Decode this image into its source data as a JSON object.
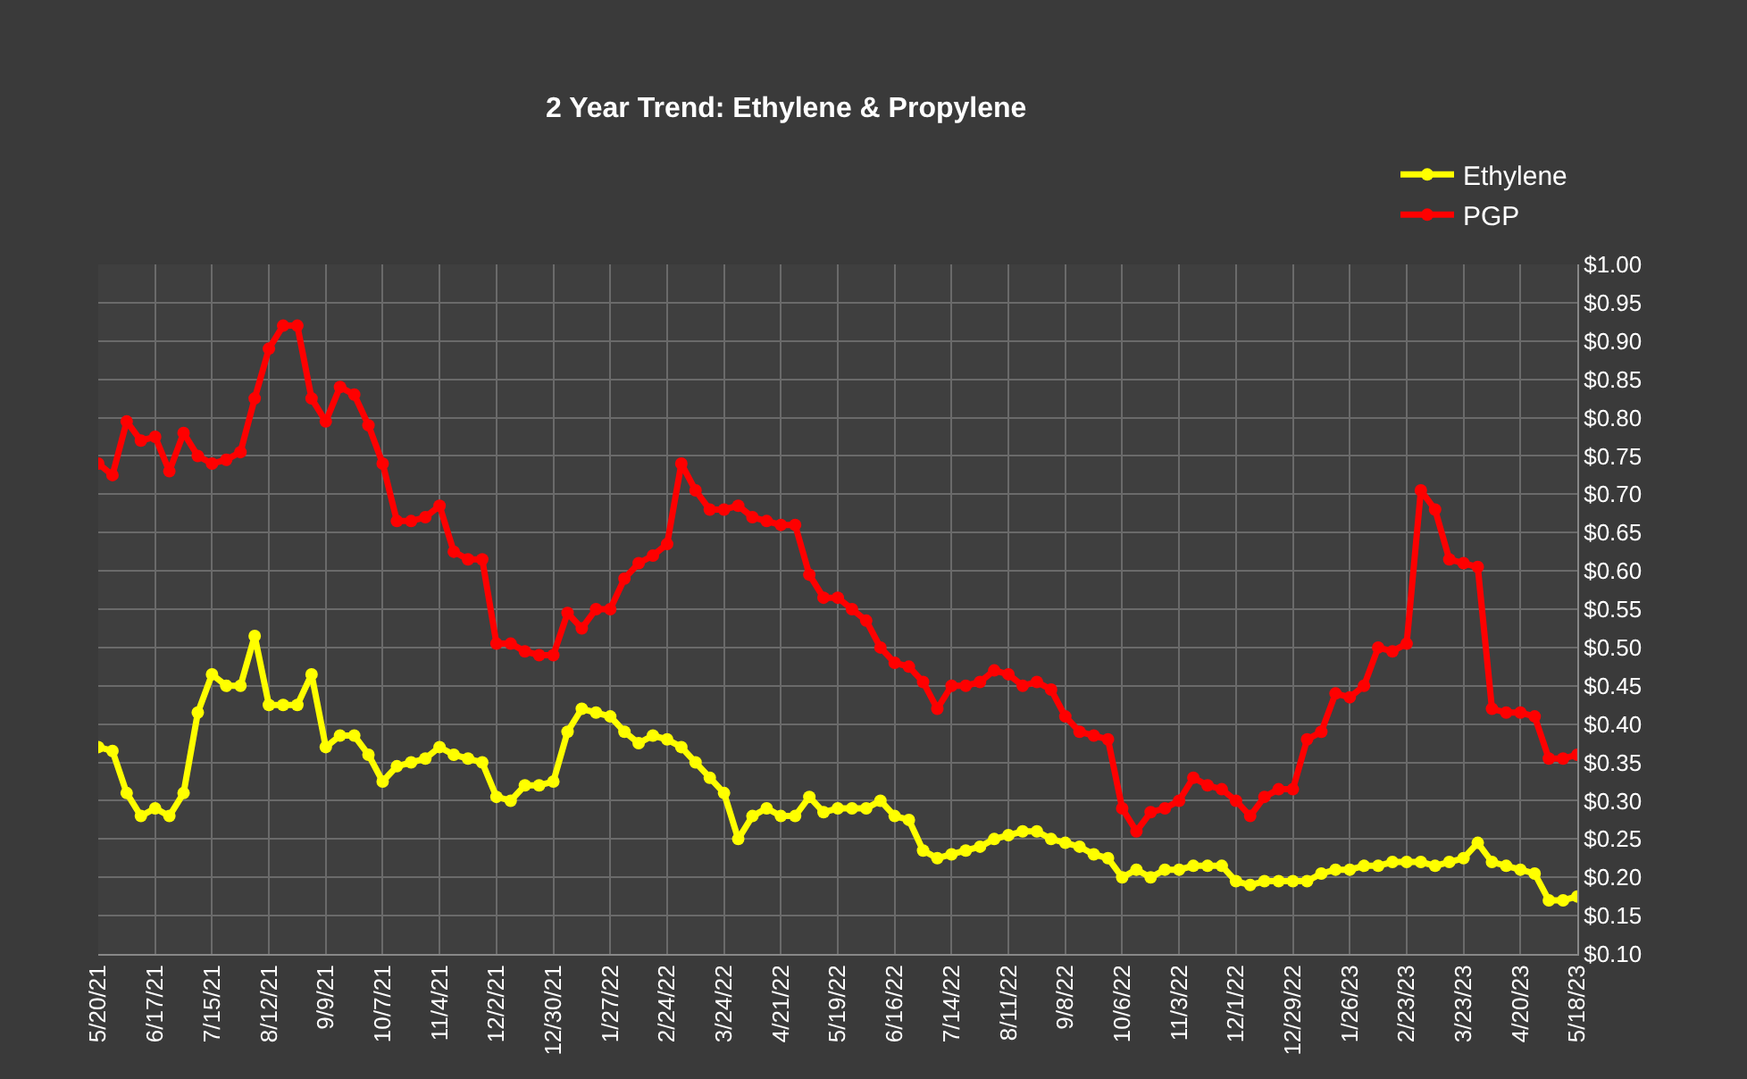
{
  "chart_data": {
    "type": "line",
    "subtitle": "2 Year Trend: Ethylene & Propylene",
    "x": [
      "2021-05-20",
      "2021-05-27",
      "2021-06-03",
      "2021-06-10",
      "2021-06-17",
      "2021-06-24",
      "2021-07-01",
      "2021-07-08",
      "2021-07-15",
      "2021-07-22",
      "2021-07-29",
      "2021-08-05",
      "2021-08-12",
      "2021-08-19",
      "2021-08-26",
      "2021-09-02",
      "2021-09-09",
      "2021-09-16",
      "2021-09-23",
      "2021-09-30",
      "2021-10-07",
      "2021-10-14",
      "2021-10-21",
      "2021-10-28",
      "2021-11-04",
      "2021-11-11",
      "2021-11-18",
      "2021-11-25",
      "2021-12-02",
      "2021-12-09",
      "2021-12-16",
      "2021-12-23",
      "2021-12-30",
      "2022-01-06",
      "2022-01-13",
      "2022-01-20",
      "2022-01-27",
      "2022-02-03",
      "2022-02-10",
      "2022-02-17",
      "2022-02-24",
      "2022-03-03",
      "2022-03-10",
      "2022-03-17",
      "2022-03-24",
      "2022-03-31",
      "2022-04-07",
      "2022-04-14",
      "2022-04-21",
      "2022-04-28",
      "2022-05-05",
      "2022-05-12",
      "2022-05-19",
      "2022-05-26",
      "2022-06-02",
      "2022-06-09",
      "2022-06-16",
      "2022-06-23",
      "2022-06-30",
      "2022-07-07",
      "2022-07-14",
      "2022-07-21",
      "2022-07-28",
      "2022-08-04",
      "2022-08-11",
      "2022-08-18",
      "2022-08-25",
      "2022-09-01",
      "2022-09-08",
      "2022-09-15",
      "2022-09-22",
      "2022-09-29",
      "2022-10-06",
      "2022-10-13",
      "2022-10-20",
      "2022-10-27",
      "2022-11-03",
      "2022-11-10",
      "2022-11-17",
      "2022-11-24",
      "2022-12-01",
      "2022-12-08",
      "2022-12-15",
      "2022-12-22",
      "2022-12-29",
      "2023-01-05",
      "2023-01-12",
      "2023-01-19",
      "2023-01-26",
      "2023-02-02",
      "2023-02-09",
      "2023-02-16",
      "2023-02-23",
      "2023-03-02",
      "2023-03-09",
      "2023-03-16",
      "2023-03-23",
      "2023-03-30",
      "2023-04-06",
      "2023-04-13",
      "2023-04-20",
      "2023-04-27",
      "2023-05-04",
      "2023-05-11",
      "2023-05-18"
    ],
    "series": [
      {
        "name": "Ethylene",
        "color": "#ffff00",
        "values": [
          0.37,
          0.365,
          0.31,
          0.28,
          0.29,
          0.28,
          0.31,
          0.415,
          0.465,
          0.45,
          0.45,
          0.515,
          0.425,
          0.425,
          0.425,
          0.465,
          0.37,
          0.385,
          0.385,
          0.36,
          0.325,
          0.345,
          0.35,
          0.355,
          0.37,
          0.36,
          0.355,
          0.35,
          0.305,
          0.3,
          0.32,
          0.32,
          0.325,
          0.39,
          0.42,
          0.415,
          0.41,
          0.39,
          0.375,
          0.385,
          0.38,
          0.37,
          0.35,
          0.33,
          0.31,
          0.25,
          0.28,
          0.29,
          0.28,
          0.28,
          0.305,
          0.285,
          0.29,
          0.29,
          0.29,
          0.3,
          0.28,
          0.275,
          0.235,
          0.225,
          0.23,
          0.235,
          0.24,
          0.25,
          0.255,
          0.26,
          0.26,
          0.25,
          0.245,
          0.24,
          0.23,
          0.225,
          0.2,
          0.21,
          0.2,
          0.21,
          0.21,
          0.215,
          0.215,
          0.215,
          0.195,
          0.19,
          0.195,
          0.195,
          0.195,
          0.195,
          0.205,
          0.21,
          0.21,
          0.215,
          0.215,
          0.22,
          0.22,
          0.22,
          0.215,
          0.22,
          0.225,
          0.245,
          0.22,
          0.215,
          0.21,
          0.205,
          0.17,
          0.17,
          0.175
        ]
      },
      {
        "name": "PGP",
        "color": "#ff0000",
        "values": [
          0.74,
          0.725,
          0.795,
          0.77,
          0.775,
          0.73,
          0.78,
          0.75,
          0.74,
          0.745,
          0.755,
          0.825,
          0.89,
          0.92,
          0.92,
          0.825,
          0.795,
          0.84,
          0.83,
          0.79,
          0.74,
          0.665,
          0.665,
          0.67,
          0.685,
          0.625,
          0.615,
          0.615,
          0.505,
          0.505,
          0.495,
          0.49,
          0.49,
          0.545,
          0.525,
          0.55,
          0.55,
          0.59,
          0.61,
          0.62,
          0.635,
          0.74,
          0.705,
          0.68,
          0.68,
          0.685,
          0.67,
          0.665,
          0.66,
          0.66,
          0.595,
          0.565,
          0.565,
          0.55,
          0.535,
          0.5,
          0.48,
          0.475,
          0.455,
          0.42,
          0.45,
          0.45,
          0.455,
          0.47,
          0.465,
          0.45,
          0.455,
          0.445,
          0.41,
          0.39,
          0.385,
          0.38,
          0.29,
          0.26,
          0.285,
          0.29,
          0.3,
          0.33,
          0.32,
          0.315,
          0.3,
          0.28,
          0.305,
          0.315,
          0.315,
          0.38,
          0.39,
          0.44,
          0.435,
          0.45,
          0.5,
          0.495,
          0.505,
          0.705,
          0.68,
          0.615,
          0.61,
          0.605,
          0.42,
          0.415,
          0.415,
          0.41,
          0.355,
          0.355,
          0.36
        ]
      }
    ],
    "xlim": [
      "2021-05-20",
      "2023-05-18"
    ],
    "xticks": [
      {
        "value": "2021-05-20",
        "label": "5/20/21"
      },
      {
        "value": "2021-06-17",
        "label": "6/17/21"
      },
      {
        "value": "2021-07-15",
        "label": "7/15/21"
      },
      {
        "value": "2021-08-12",
        "label": "8/12/21"
      },
      {
        "value": "2021-09-09",
        "label": "9/9/21"
      },
      {
        "value": "2021-10-07",
        "label": "10/7/21"
      },
      {
        "value": "2021-11-04",
        "label": "11/4/21"
      },
      {
        "value": "2021-12-02",
        "label": "12/2/21"
      },
      {
        "value": "2021-12-30",
        "label": "12/30/21"
      },
      {
        "value": "2022-01-27",
        "label": "1/27/22"
      },
      {
        "value": "2022-02-24",
        "label": "2/24/22"
      },
      {
        "value": "2022-03-24",
        "label": "3/24/22"
      },
      {
        "value": "2022-04-21",
        "label": "4/21/22"
      },
      {
        "value": "2022-05-19",
        "label": "5/19/22"
      },
      {
        "value": "2022-06-16",
        "label": "6/16/22"
      },
      {
        "value": "2022-07-14",
        "label": "7/14/22"
      },
      {
        "value": "2022-08-11",
        "label": "8/11/22"
      },
      {
        "value": "2022-09-08",
        "label": "9/8/22"
      },
      {
        "value": "2022-10-06",
        "label": "10/6/22"
      },
      {
        "value": "2022-11-03",
        "label": "11/3/22"
      },
      {
        "value": "2022-12-01",
        "label": "12/1/22"
      },
      {
        "value": "2022-12-29",
        "label": "12/29/22"
      },
      {
        "value": "2023-01-26",
        "label": "1/26/23"
      },
      {
        "value": "2023-02-23",
        "label": "2/23/23"
      },
      {
        "value": "2023-03-23",
        "label": "3/23/23"
      },
      {
        "value": "2023-04-20",
        "label": "4/20/23"
      },
      {
        "value": "2023-05-18",
        "label": "5/18/23"
      }
    ],
    "ylim": [
      0.1,
      1.0
    ],
    "yticks": [
      {
        "value": 0.1,
        "label": "$0.10"
      },
      {
        "value": 0.15,
        "label": "$0.15"
      },
      {
        "value": 0.2,
        "label": "$0.20"
      },
      {
        "value": 0.25,
        "label": "$0.25"
      },
      {
        "value": 0.3,
        "label": "$0.30"
      },
      {
        "value": 0.35,
        "label": "$0.35"
      },
      {
        "value": 0.4,
        "label": "$0.40"
      },
      {
        "value": 0.45,
        "label": "$0.45"
      },
      {
        "value": 0.5,
        "label": "$0.50"
      },
      {
        "value": 0.55,
        "label": "$0.55"
      },
      {
        "value": 0.6,
        "label": "$0.60"
      },
      {
        "value": 0.65,
        "label": "$0.65"
      },
      {
        "value": 0.7,
        "label": "$0.70"
      },
      {
        "value": 0.75,
        "label": "$0.75"
      },
      {
        "value": 0.8,
        "label": "$0.80"
      },
      {
        "value": 0.85,
        "label": "$0.85"
      },
      {
        "value": 0.9,
        "label": "$0.90"
      },
      {
        "value": 0.95,
        "label": "$0.95"
      },
      {
        "value": 1.0,
        "label": "$1.00"
      }
    ],
    "grid": true,
    "legend": "top right",
    "marker": "circle",
    "line_style": "solid"
  }
}
